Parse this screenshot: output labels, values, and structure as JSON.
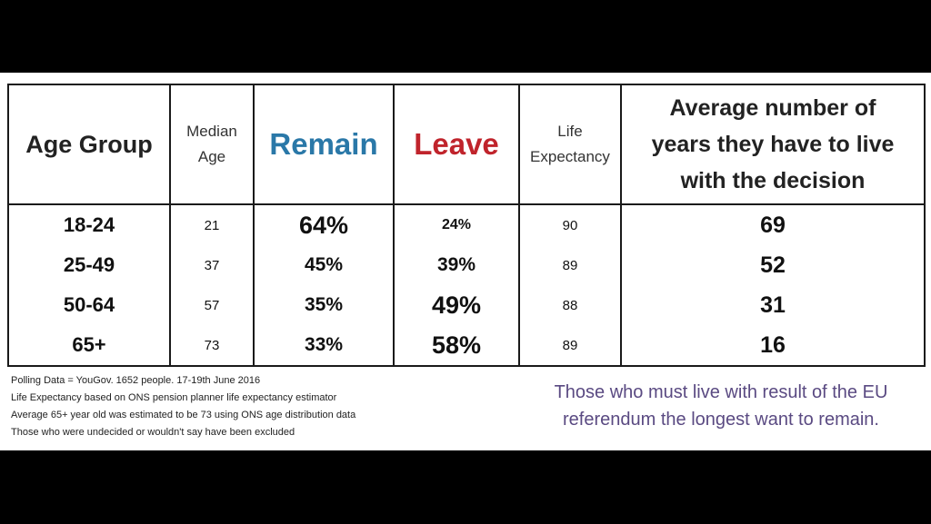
{
  "colors": {
    "remain": "#2a78a8",
    "leave": "#c0242c",
    "conclusion": "#5a4a82"
  },
  "table": {
    "headers": {
      "age_group": "Age Group",
      "median_age": [
        "Median",
        "Age"
      ],
      "remain": "Remain",
      "leave": "Leave",
      "life_expectancy": [
        "Life",
        "Expectancy"
      ],
      "years": [
        "Average number of",
        "years they have to live",
        "with the decision"
      ]
    },
    "rows": [
      {
        "group": "18-24",
        "median": "21",
        "remain": "64%",
        "leave": "24%",
        "life": "90",
        "years": "69"
      },
      {
        "group": "25-49",
        "median": "37",
        "remain": "45%",
        "leave": "39%",
        "life": "89",
        "years": "52"
      },
      {
        "group": "50-64",
        "median": "57",
        "remain": "35%",
        "leave": "49%",
        "life": "88",
        "years": "31"
      },
      {
        "group": "65+",
        "median": "73",
        "remain": "33%",
        "leave": "58%",
        "life": "89",
        "years": "16"
      }
    ]
  },
  "notes": [
    "Polling Data = YouGov. 1652 people. 17-19th June 2016",
    "Life Expectancy based on ONS pension planner life expectancy estimator",
    "Average 65+ year old was estimated to be 73 using ONS age distribution data",
    "Those who were undecided or wouldn't say have been excluded"
  ],
  "conclusion": [
    "Those who must live with result of the EU",
    "referendum the longest want to remain."
  ],
  "chart_data": {
    "type": "table",
    "columns": [
      "Age Group",
      "Median Age",
      "Remain",
      "Leave",
      "Life Expectancy",
      "Average number of years they have to live with the decision"
    ],
    "categories": [
      "18-24",
      "25-49",
      "50-64",
      "65+"
    ],
    "series": [
      {
        "name": "Median Age",
        "values": [
          21,
          37,
          57,
          73
        ]
      },
      {
        "name": "Remain",
        "values": [
          64,
          45,
          35,
          33
        ]
      },
      {
        "name": "Leave",
        "values": [
          24,
          39,
          49,
          58
        ]
      },
      {
        "name": "Life Expectancy",
        "values": [
          90,
          89,
          88,
          89
        ]
      },
      {
        "name": "Average number of years they have to live with the decision",
        "values": [
          69,
          52,
          31,
          16
        ]
      }
    ]
  }
}
